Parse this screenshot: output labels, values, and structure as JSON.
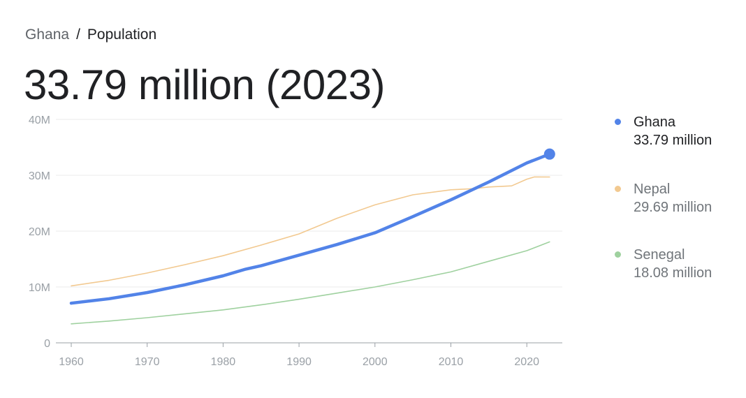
{
  "breadcrumb": {
    "parent": "Ghana",
    "separator": "/",
    "current": "Population"
  },
  "headline": "33.79 million (2023)",
  "legend": [
    {
      "name": "Ghana",
      "value": "33.79 million",
      "color": "#5283e8",
      "emphasis": true
    },
    {
      "name": "Nepal",
      "value": "29.69 million",
      "color": "#f2c990",
      "emphasis": false
    },
    {
      "name": "Senegal",
      "value": "18.08 million",
      "color": "#9fd19f",
      "emphasis": false
    }
  ],
  "chart_data": {
    "type": "line",
    "x_ticks": [
      "1960",
      "1970",
      "1980",
      "1990",
      "2000",
      "2010",
      "2020"
    ],
    "y_ticks": [
      "0",
      "10M",
      "20M",
      "30M",
      "40M"
    ],
    "xlim": [
      1960,
      2023
    ],
    "ylim": [
      0,
      40000000
    ],
    "grid": "horizontal",
    "legend_position": "right",
    "highlight": {
      "series": "Ghana",
      "x": 2023,
      "y": 33790000
    },
    "series": [
      {
        "name": "Ghana",
        "color": "#5283e8",
        "x": [
          1960,
          1965,
          1970,
          1975,
          1980,
          1983,
          1985,
          1990,
          1995,
          2000,
          2005,
          2010,
          2015,
          2020,
          2023
        ],
        "values": [
          7100000,
          7900000,
          9000000,
          10400000,
          12000000,
          13200000,
          13800000,
          15700000,
          17600000,
          19700000,
          22600000,
          25600000,
          28800000,
          32200000,
          33790000
        ]
      },
      {
        "name": "Nepal",
        "color": "#f2c990",
        "x": [
          1960,
          1965,
          1970,
          1975,
          1980,
          1985,
          1990,
          1995,
          2000,
          2005,
          2010,
          2013,
          2015,
          2018,
          2020,
          2021,
          2023
        ],
        "values": [
          10200000,
          11200000,
          12500000,
          14000000,
          15600000,
          17500000,
          19500000,
          22300000,
          24700000,
          26500000,
          27400000,
          27600000,
          27900000,
          28100000,
          29300000,
          29700000,
          29690000
        ]
      },
      {
        "name": "Senegal",
        "color": "#9fd19f",
        "x": [
          1960,
          1965,
          1970,
          1975,
          1980,
          1985,
          1990,
          1995,
          2000,
          2005,
          2010,
          2015,
          2020,
          2023
        ],
        "values": [
          3400000,
          3900000,
          4500000,
          5200000,
          5900000,
          6800000,
          7800000,
          8900000,
          10000000,
          11300000,
          12700000,
          14600000,
          16500000,
          18080000
        ]
      }
    ]
  }
}
